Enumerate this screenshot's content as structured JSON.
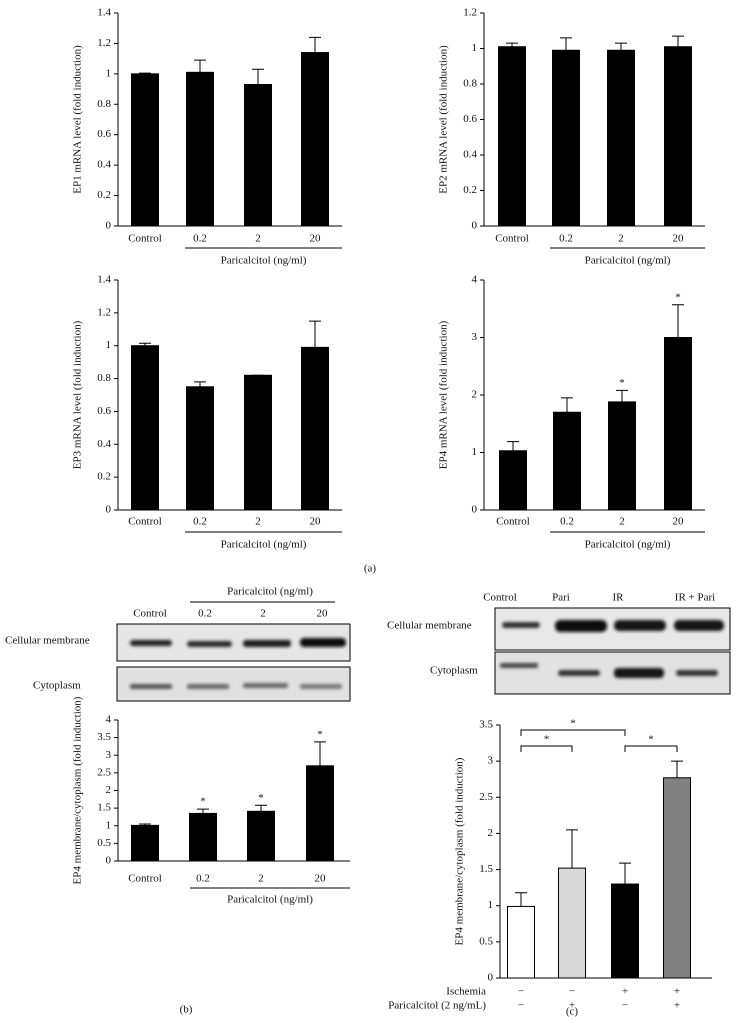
{
  "panel_labels": [
    "(a)",
    "(b)",
    "(c)"
  ],
  "blot_b": {
    "header": "Paricalcitol (ng/ml)",
    "lanes": [
      "Control",
      "0.2",
      "2",
      "20"
    ],
    "rows": [
      "Cellular membrane",
      "Cytoplasm"
    ]
  },
  "blot_c": {
    "lanes": [
      "Control",
      "Pari",
      "IR",
      "IR + Pari"
    ],
    "rows": [
      "Cellular membrane",
      "Cytoplasm"
    ]
  },
  "chart_data": [
    {
      "type": "bar",
      "y_label": "EP1 mRNA level (fold induction)",
      "categories": [
        "Control",
        "0.2",
        "2",
        "20"
      ],
      "group_label": "Paricalcitol (ng/ml)",
      "values": [
        1.0,
        1.01,
        0.93,
        1.14
      ],
      "errors": [
        0.005,
        0.08,
        0.1,
        0.1
      ],
      "color": "#000000",
      "ylim": [
        0,
        1.4
      ],
      "yticks": [
        0,
        0.2,
        0.4,
        0.6,
        0.8,
        1,
        1.2,
        1.4
      ]
    },
    {
      "type": "bar",
      "y_label": "EP2 mRNA level (fold induction)",
      "categories": [
        "Control",
        "0.2",
        "2",
        "20"
      ],
      "group_label": "Paricalcitol (ng/ml)",
      "values": [
        1.01,
        0.99,
        0.99,
        1.01
      ],
      "errors": [
        0.02,
        0.07,
        0.04,
        0.06
      ],
      "color": "#000000",
      "ylim": [
        0,
        1.2
      ],
      "yticks": [
        0,
        0.2,
        0.4,
        0.6,
        0.8,
        1,
        1.2
      ]
    },
    {
      "type": "bar",
      "y_label": "EP3 mRNA level (fold induction)",
      "categories": [
        "Control",
        "0.2",
        "2",
        "20"
      ],
      "group_label": "Paricalcitol (ng/ml)",
      "values": [
        1.0,
        0.75,
        0.82,
        0.99
      ],
      "errors": [
        0.015,
        0.03,
        0,
        0.16
      ],
      "color": "#000000",
      "ylim": [
        0,
        1.4
      ],
      "yticks": [
        0,
        0.2,
        0.4,
        0.6,
        0.8,
        1,
        1.2,
        1.4
      ]
    },
    {
      "type": "bar",
      "y_label": "EP4 mRNA level (fold induction)",
      "categories": [
        "Control",
        "0.2",
        "2",
        "20"
      ],
      "group_label": "Paricalcitol (ng/ml)",
      "values": [
        1.03,
        1.7,
        1.88,
        3.0
      ],
      "errors": [
        0.16,
        0.25,
        0.2,
        0.57
      ],
      "bar_labels": [
        null,
        null,
        "*",
        "*"
      ],
      "color": "#000000",
      "ylim": [
        0,
        4
      ],
      "yticks": [
        0,
        1,
        2,
        3,
        4
      ]
    },
    {
      "type": "bar",
      "y_label": "EP4 membrane/cytoplasm (fold induction)",
      "categories": [
        "Control",
        "0.2",
        "2",
        "20"
      ],
      "group_label": "Paricalcitol (ng/ml)",
      "values": [
        1.01,
        1.35,
        1.41,
        2.7
      ],
      "errors": [
        0.04,
        0.12,
        0.17,
        0.68
      ],
      "bar_labels": [
        null,
        "*",
        "*",
        "*"
      ],
      "color": "#000000",
      "ylim": [
        0,
        4
      ],
      "yticks": [
        0,
        0.5,
        1,
        1.5,
        2,
        2.5,
        3,
        3.5,
        4
      ]
    },
    {
      "type": "bar",
      "y_label": "EP4 membrane/cytoplasm (fold induction)",
      "values": [
        0.99,
        1.52,
        1.3,
        2.77
      ],
      "errors": [
        0.19,
        0.53,
        0.29,
        0.23
      ],
      "colors": [
        "#ffffff",
        "#d9d9d9",
        "#000000",
        "#808080"
      ],
      "rows": [
        {
          "name": "Ischemia",
          "values": [
            "−",
            "−",
            "+",
            "+"
          ]
        },
        {
          "name": "Paricalcitol (2 ng/mL)",
          "values": [
            "−",
            "+",
            "−",
            "+"
          ]
        }
      ],
      "brackets": [
        {
          "from": 0,
          "to": 1,
          "text": "*"
        },
        {
          "from": 0,
          "to": 2,
          "text": "*"
        },
        {
          "from": 2,
          "to": 3,
          "text": "*"
        }
      ],
      "ylim": [
        0,
        3.5
      ],
      "yticks": [
        0,
        0.5,
        1,
        1.5,
        2,
        2.5,
        3,
        3.5
      ]
    }
  ]
}
